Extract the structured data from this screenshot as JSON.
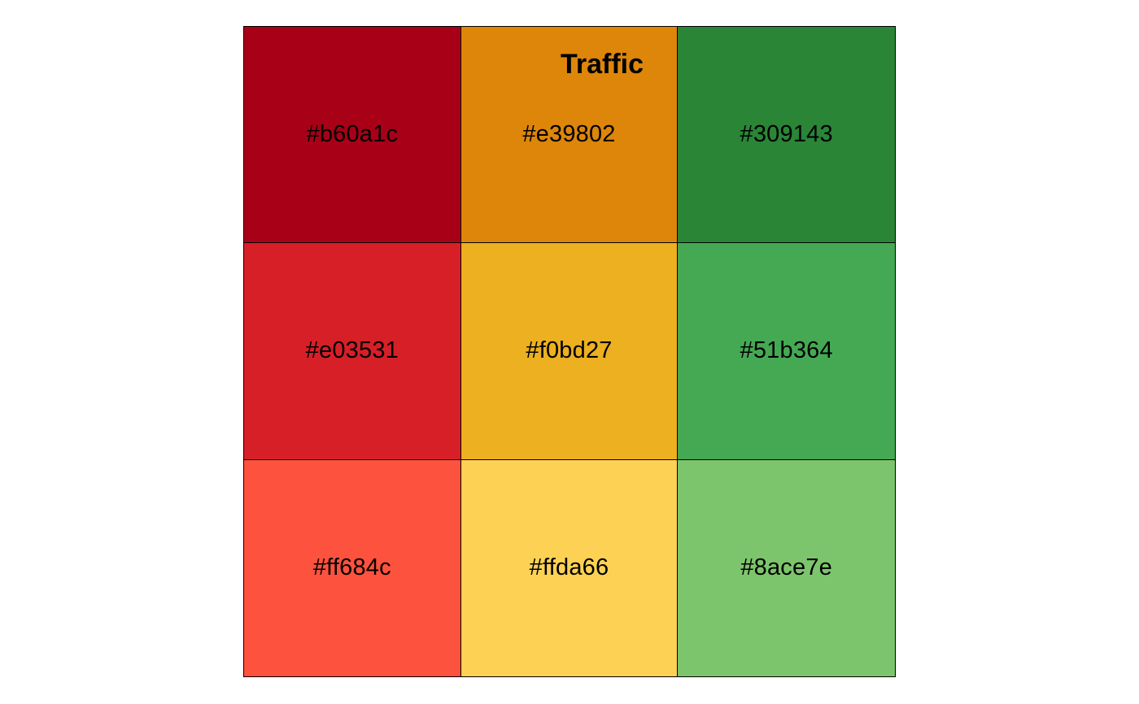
{
  "title": "Traffic",
  "swatches": [
    {
      "label": "#b60a1c",
      "color": "#a80017"
    },
    {
      "label": "#e39802",
      "color": "#dd8609"
    },
    {
      "label": "#309143",
      "color": "#2a8537"
    },
    {
      "label": "#e03531",
      "color": "#d71f27"
    },
    {
      "label": "#f0bd27",
      "color": "#ecb020"
    },
    {
      "label": "#51b364",
      "color": "#45a953"
    },
    {
      "label": "#ff684c",
      "color": "#fd523e"
    },
    {
      "label": "#ffda66",
      "color": "#fdd254"
    },
    {
      "label": "#8ace7e",
      "color": "#7cc56c"
    }
  ]
}
